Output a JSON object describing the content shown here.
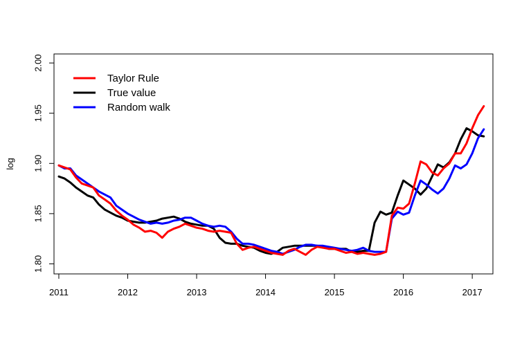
{
  "chart_data": {
    "type": "line",
    "title": "",
    "xlabel": "",
    "ylabel": "log",
    "xlim": [
      2010.93,
      2017.3
    ],
    "ylim": [
      1.79,
      2.009
    ],
    "x_ticks": [
      2011,
      2012,
      2013,
      2014,
      2015,
      2016,
      2017
    ],
    "x_tick_labels": [
      "2011",
      "2012",
      "2013",
      "2014",
      "2015",
      "2016",
      "2017"
    ],
    "y_ticks": [
      1.8,
      1.85,
      1.9,
      1.95,
      2.0
    ],
    "y_tick_labels": [
      "1.80",
      "1.85",
      "1.90",
      "1.95",
      "2.00"
    ],
    "grid": false,
    "legend_position": "top-left",
    "series": [
      {
        "name": "Taylor Rule",
        "color": "#ff0000",
        "points": [
          [
            2011.0,
            1.898
          ],
          [
            2011.083,
            1.896
          ],
          [
            2011.167,
            1.894
          ],
          [
            2011.25,
            1.886
          ],
          [
            2011.333,
            1.88
          ],
          [
            2011.417,
            1.878
          ],
          [
            2011.5,
            1.876
          ],
          [
            2011.583,
            1.868
          ],
          [
            2011.667,
            1.864
          ],
          [
            2011.75,
            1.86
          ],
          [
            2011.833,
            1.853
          ],
          [
            2011.917,
            1.848
          ],
          [
            2012.0,
            1.844
          ],
          [
            2012.083,
            1.839
          ],
          [
            2012.167,
            1.836
          ],
          [
            2012.25,
            1.832
          ],
          [
            2012.333,
            1.833
          ],
          [
            2012.417,
            1.831
          ],
          [
            2012.5,
            1.826
          ],
          [
            2012.583,
            1.832
          ],
          [
            2012.667,
            1.835
          ],
          [
            2012.75,
            1.837
          ],
          [
            2012.833,
            1.84
          ],
          [
            2012.917,
            1.838
          ],
          [
            2013.0,
            1.836
          ],
          [
            2013.083,
            1.835
          ],
          [
            2013.167,
            1.833
          ],
          [
            2013.25,
            1.832
          ],
          [
            2013.333,
            1.833
          ],
          [
            2013.417,
            1.832
          ],
          [
            2013.5,
            1.831
          ],
          [
            2013.583,
            1.82
          ],
          [
            2013.667,
            1.814
          ],
          [
            2013.75,
            1.816
          ],
          [
            2013.833,
            1.817
          ],
          [
            2013.917,
            1.815
          ],
          [
            2014.0,
            1.813
          ],
          [
            2014.083,
            1.811
          ],
          [
            2014.167,
            1.81
          ],
          [
            2014.25,
            1.809
          ],
          [
            2014.333,
            1.813
          ],
          [
            2014.417,
            1.815
          ],
          [
            2014.5,
            1.812
          ],
          [
            2014.583,
            1.809
          ],
          [
            2014.667,
            1.814
          ],
          [
            2014.75,
            1.817
          ],
          [
            2014.833,
            1.816
          ],
          [
            2014.917,
            1.815
          ],
          [
            2015.0,
            1.815
          ],
          [
            2015.083,
            1.813
          ],
          [
            2015.167,
            1.811
          ],
          [
            2015.25,
            1.812
          ],
          [
            2015.333,
            1.81
          ],
          [
            2015.417,
            1.811
          ],
          [
            2015.5,
            1.81
          ],
          [
            2015.583,
            1.809
          ],
          [
            2015.667,
            1.81
          ],
          [
            2015.75,
            1.812
          ],
          [
            2015.833,
            1.848
          ],
          [
            2015.917,
            1.856
          ],
          [
            2016.0,
            1.855
          ],
          [
            2016.083,
            1.86
          ],
          [
            2016.167,
            1.88
          ],
          [
            2016.25,
            1.902
          ],
          [
            2016.333,
            1.899
          ],
          [
            2016.417,
            1.891
          ],
          [
            2016.5,
            1.888
          ],
          [
            2016.583,
            1.895
          ],
          [
            2016.667,
            1.9
          ],
          [
            2016.75,
            1.91
          ],
          [
            2016.833,
            1.91
          ],
          [
            2016.917,
            1.92
          ],
          [
            2017.0,
            1.935
          ],
          [
            2017.083,
            1.948
          ],
          [
            2017.167,
            1.957
          ]
        ]
      },
      {
        "name": "True value",
        "color": "#000000",
        "points": [
          [
            2011.0,
            1.887
          ],
          [
            2011.083,
            1.885
          ],
          [
            2011.167,
            1.881
          ],
          [
            2011.25,
            1.876
          ],
          [
            2011.333,
            1.872
          ],
          [
            2011.417,
            1.868
          ],
          [
            2011.5,
            1.866
          ],
          [
            2011.583,
            1.859
          ],
          [
            2011.667,
            1.854
          ],
          [
            2011.75,
            1.851
          ],
          [
            2011.833,
            1.848
          ],
          [
            2011.917,
            1.846
          ],
          [
            2012.0,
            1.843
          ],
          [
            2012.083,
            1.842
          ],
          [
            2012.167,
            1.841
          ],
          [
            2012.25,
            1.841
          ],
          [
            2012.333,
            1.842
          ],
          [
            2012.417,
            1.843
          ],
          [
            2012.5,
            1.845
          ],
          [
            2012.583,
            1.846
          ],
          [
            2012.667,
            1.847
          ],
          [
            2012.75,
            1.845
          ],
          [
            2012.833,
            1.842
          ],
          [
            2012.917,
            1.84
          ],
          [
            2013.0,
            1.839
          ],
          [
            2013.083,
            1.838
          ],
          [
            2013.167,
            1.838
          ],
          [
            2013.25,
            1.835
          ],
          [
            2013.333,
            1.826
          ],
          [
            2013.417,
            1.821
          ],
          [
            2013.5,
            1.82
          ],
          [
            2013.583,
            1.82
          ],
          [
            2013.667,
            1.818
          ],
          [
            2013.75,
            1.817
          ],
          [
            2013.833,
            1.816
          ],
          [
            2013.917,
            1.813
          ],
          [
            2014.0,
            1.811
          ],
          [
            2014.083,
            1.81
          ],
          [
            2014.167,
            1.812
          ],
          [
            2014.25,
            1.816
          ],
          [
            2014.333,
            1.817
          ],
          [
            2014.417,
            1.818
          ],
          [
            2014.5,
            1.818
          ],
          [
            2014.583,
            1.818
          ],
          [
            2014.667,
            1.818
          ],
          [
            2014.75,
            1.818
          ],
          [
            2014.833,
            1.817
          ],
          [
            2014.917,
            1.815
          ],
          [
            2015.0,
            1.815
          ],
          [
            2015.083,
            1.815
          ],
          [
            2015.167,
            1.815
          ],
          [
            2015.25,
            1.812
          ],
          [
            2015.333,
            1.812
          ],
          [
            2015.417,
            1.813
          ],
          [
            2015.5,
            1.813
          ],
          [
            2015.583,
            1.841
          ],
          [
            2015.667,
            1.852
          ],
          [
            2015.75,
            1.849
          ],
          [
            2015.833,
            1.851
          ],
          [
            2015.917,
            1.868
          ],
          [
            2016.0,
            1.883
          ],
          [
            2016.083,
            1.879
          ],
          [
            2016.167,
            1.875
          ],
          [
            2016.25,
            1.869
          ],
          [
            2016.333,
            1.875
          ],
          [
            2016.417,
            1.887
          ],
          [
            2016.5,
            1.899
          ],
          [
            2016.583,
            1.896
          ],
          [
            2016.667,
            1.901
          ],
          [
            2016.75,
            1.91
          ],
          [
            2016.833,
            1.924
          ],
          [
            2016.917,
            1.935
          ],
          [
            2017.0,
            1.932
          ],
          [
            2017.083,
            1.928
          ],
          [
            2017.167,
            1.927
          ]
        ]
      },
      {
        "name": "Random walk",
        "color": "#0000ff",
        "points": [
          [
            2011.0,
            1.898
          ],
          [
            2011.083,
            1.895
          ],
          [
            2011.167,
            1.895
          ],
          [
            2011.25,
            1.888
          ],
          [
            2011.333,
            1.884
          ],
          [
            2011.417,
            1.88
          ],
          [
            2011.5,
            1.876
          ],
          [
            2011.583,
            1.872
          ],
          [
            2011.667,
            1.869
          ],
          [
            2011.75,
            1.866
          ],
          [
            2011.833,
            1.858
          ],
          [
            2011.917,
            1.854
          ],
          [
            2012.0,
            1.85
          ],
          [
            2012.083,
            1.847
          ],
          [
            2012.167,
            1.844
          ],
          [
            2012.25,
            1.842
          ],
          [
            2012.333,
            1.84
          ],
          [
            2012.417,
            1.841
          ],
          [
            2012.5,
            1.84
          ],
          [
            2012.583,
            1.841
          ],
          [
            2012.667,
            1.843
          ],
          [
            2012.75,
            1.844
          ],
          [
            2012.833,
            1.846
          ],
          [
            2012.917,
            1.846
          ],
          [
            2013.0,
            1.843
          ],
          [
            2013.083,
            1.84
          ],
          [
            2013.167,
            1.838
          ],
          [
            2013.25,
            1.837
          ],
          [
            2013.333,
            1.838
          ],
          [
            2013.417,
            1.837
          ],
          [
            2013.5,
            1.832
          ],
          [
            2013.583,
            1.825
          ],
          [
            2013.667,
            1.82
          ],
          [
            2013.75,
            1.82
          ],
          [
            2013.833,
            1.819
          ],
          [
            2013.917,
            1.817
          ],
          [
            2014.0,
            1.815
          ],
          [
            2014.083,
            1.813
          ],
          [
            2014.167,
            1.812
          ],
          [
            2014.25,
            1.81
          ],
          [
            2014.333,
            1.812
          ],
          [
            2014.417,
            1.814
          ],
          [
            2014.5,
            1.817
          ],
          [
            2014.583,
            1.819
          ],
          [
            2014.667,
            1.819
          ],
          [
            2014.75,
            1.818
          ],
          [
            2014.833,
            1.818
          ],
          [
            2014.917,
            1.817
          ],
          [
            2015.0,
            1.816
          ],
          [
            2015.083,
            1.815
          ],
          [
            2015.167,
            1.814
          ],
          [
            2015.25,
            1.813
          ],
          [
            2015.333,
            1.814
          ],
          [
            2015.417,
            1.816
          ],
          [
            2015.5,
            1.813
          ],
          [
            2015.583,
            1.812
          ],
          [
            2015.667,
            1.812
          ],
          [
            2015.75,
            1.812
          ],
          [
            2015.833,
            1.845
          ],
          [
            2015.917,
            1.852
          ],
          [
            2016.0,
            1.849
          ],
          [
            2016.083,
            1.851
          ],
          [
            2016.167,
            1.868
          ],
          [
            2016.25,
            1.883
          ],
          [
            2016.333,
            1.879
          ],
          [
            2016.417,
            1.874
          ],
          [
            2016.5,
            1.87
          ],
          [
            2016.583,
            1.875
          ],
          [
            2016.667,
            1.885
          ],
          [
            2016.75,
            1.898
          ],
          [
            2016.833,
            1.895
          ],
          [
            2016.917,
            1.899
          ],
          [
            2017.0,
            1.91
          ],
          [
            2017.083,
            1.925
          ],
          [
            2017.167,
            1.934
          ]
        ]
      }
    ]
  }
}
